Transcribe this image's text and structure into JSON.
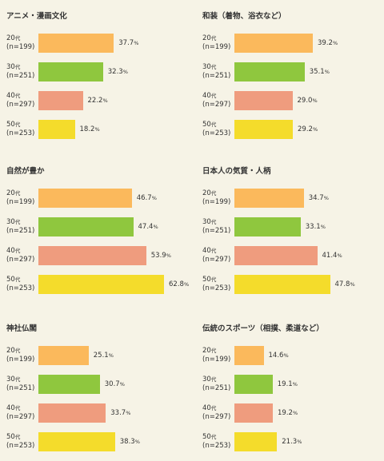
{
  "unit_age": "代",
  "unit_pct": "%",
  "colors": {
    "20": "#fbb95c",
    "30": "#8fc73e",
    "40": "#ef9c7e",
    "50": "#f4dc2b",
    "background": "#f6f3e6"
  },
  "chart_data": [
    {
      "type": "bar",
      "orientation": "horizontal",
      "title": "アニメ・漫画文化",
      "categories": [
        "20",
        "30",
        "40",
        "50"
      ],
      "counts": [
        "(n=199)",
        "(n=251)",
        "(n=297)",
        "(n=253)"
      ],
      "values": [
        37.7,
        32.3,
        22.2,
        18.2
      ],
      "value_labels": [
        "37.7",
        "32.3",
        "22.2",
        "18.2"
      ],
      "xlim": [
        0,
        70
      ]
    },
    {
      "type": "bar",
      "orientation": "horizontal",
      "title": "和装（着物、浴衣など）",
      "categories": [
        "20",
        "30",
        "40",
        "50"
      ],
      "counts": [
        "(n=199)",
        "(n=251)",
        "(n=297)",
        "(n=253)"
      ],
      "values": [
        39.2,
        35.1,
        29.0,
        29.2
      ],
      "value_labels": [
        "39.2",
        "35.1",
        "29.0",
        "29.2"
      ],
      "xlim": [
        0,
        70
      ]
    },
    {
      "type": "bar",
      "orientation": "horizontal",
      "title": "自然が豊か",
      "categories": [
        "20",
        "30",
        "40",
        "50"
      ],
      "counts": [
        "(n=199)",
        "(n=251)",
        "(n=297)",
        "(n=253)"
      ],
      "values": [
        46.7,
        47.4,
        53.9,
        62.8
      ],
      "value_labels": [
        "46.7",
        "47.4",
        "53.9",
        "62.8"
      ],
      "xlim": [
        0,
        70
      ]
    },
    {
      "type": "bar",
      "orientation": "horizontal",
      "title": "日本人の気質・人柄",
      "categories": [
        "20",
        "30",
        "40",
        "50"
      ],
      "counts": [
        "(n=199)",
        "(n=251)",
        "(n=297)",
        "(n=253)"
      ],
      "values": [
        34.7,
        33.1,
        41.4,
        47.8
      ],
      "value_labels": [
        "34.7",
        "33.1",
        "41.4",
        "47.8"
      ],
      "xlim": [
        0,
        70
      ]
    },
    {
      "type": "bar",
      "orientation": "horizontal",
      "title": "神社仏閣",
      "categories": [
        "20",
        "30",
        "40",
        "50"
      ],
      "counts": [
        "(n=199)",
        "(n=251)",
        "(n=297)",
        "(n=253)"
      ],
      "values": [
        25.1,
        30.7,
        33.7,
        38.3
      ],
      "value_labels": [
        "25.1",
        "30.7",
        "33.7",
        "38.3"
      ],
      "xlim": [
        0,
        70
      ]
    },
    {
      "type": "bar",
      "orientation": "horizontal",
      "title": "伝統のスポーツ（相撲、柔道など）",
      "categories": [
        "20",
        "30",
        "40",
        "50"
      ],
      "counts": [
        "(n=199)",
        "(n=251)",
        "(n=297)",
        "(n=253)"
      ],
      "values": [
        14.6,
        19.1,
        19.2,
        21.3
      ],
      "value_labels": [
        "14.6",
        "19.1",
        "19.2",
        "21.3"
      ],
      "xlim": [
        0,
        70
      ]
    }
  ]
}
